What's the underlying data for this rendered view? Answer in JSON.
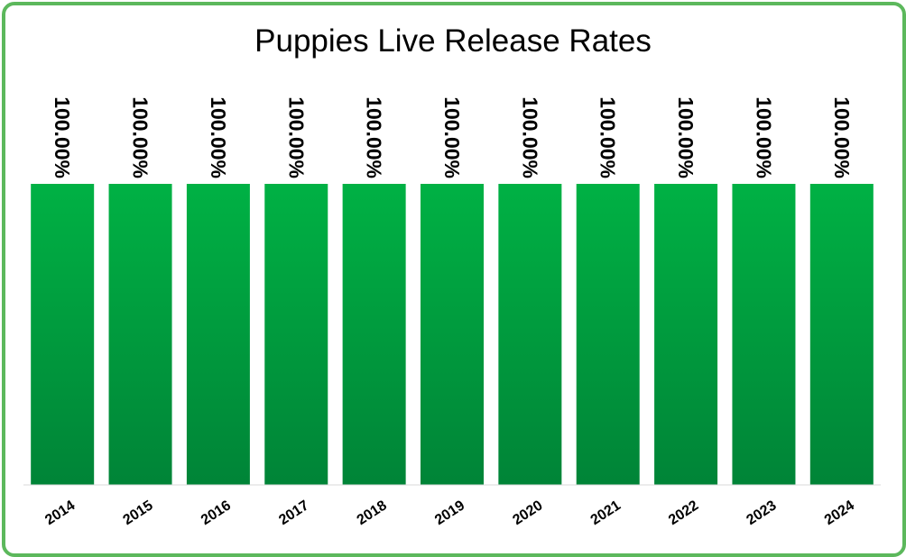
{
  "chart_data": {
    "type": "bar",
    "title": "Puppies Live Release Rates",
    "xlabel": "",
    "ylabel": "",
    "categories": [
      "2014",
      "2015",
      "2016",
      "2017",
      "2018",
      "2019",
      "2020",
      "2021",
      "2022",
      "2023",
      "2024"
    ],
    "values": [
      100,
      100,
      100,
      100,
      100,
      100,
      100,
      100,
      100,
      100,
      100
    ],
    "data_labels": [
      "100.00%",
      "100.00%",
      "100.00%",
      "100.00%",
      "100.00%",
      "100.00%",
      "100.00%",
      "100.00%",
      "100.00%",
      "100.00%",
      "100.00%"
    ],
    "ylim": [
      0,
      100
    ],
    "grid": false,
    "legend": "none"
  },
  "colors": {
    "border": "#5cb85c",
    "bar_top": "#00b144",
    "bar_bottom": "#008437"
  }
}
